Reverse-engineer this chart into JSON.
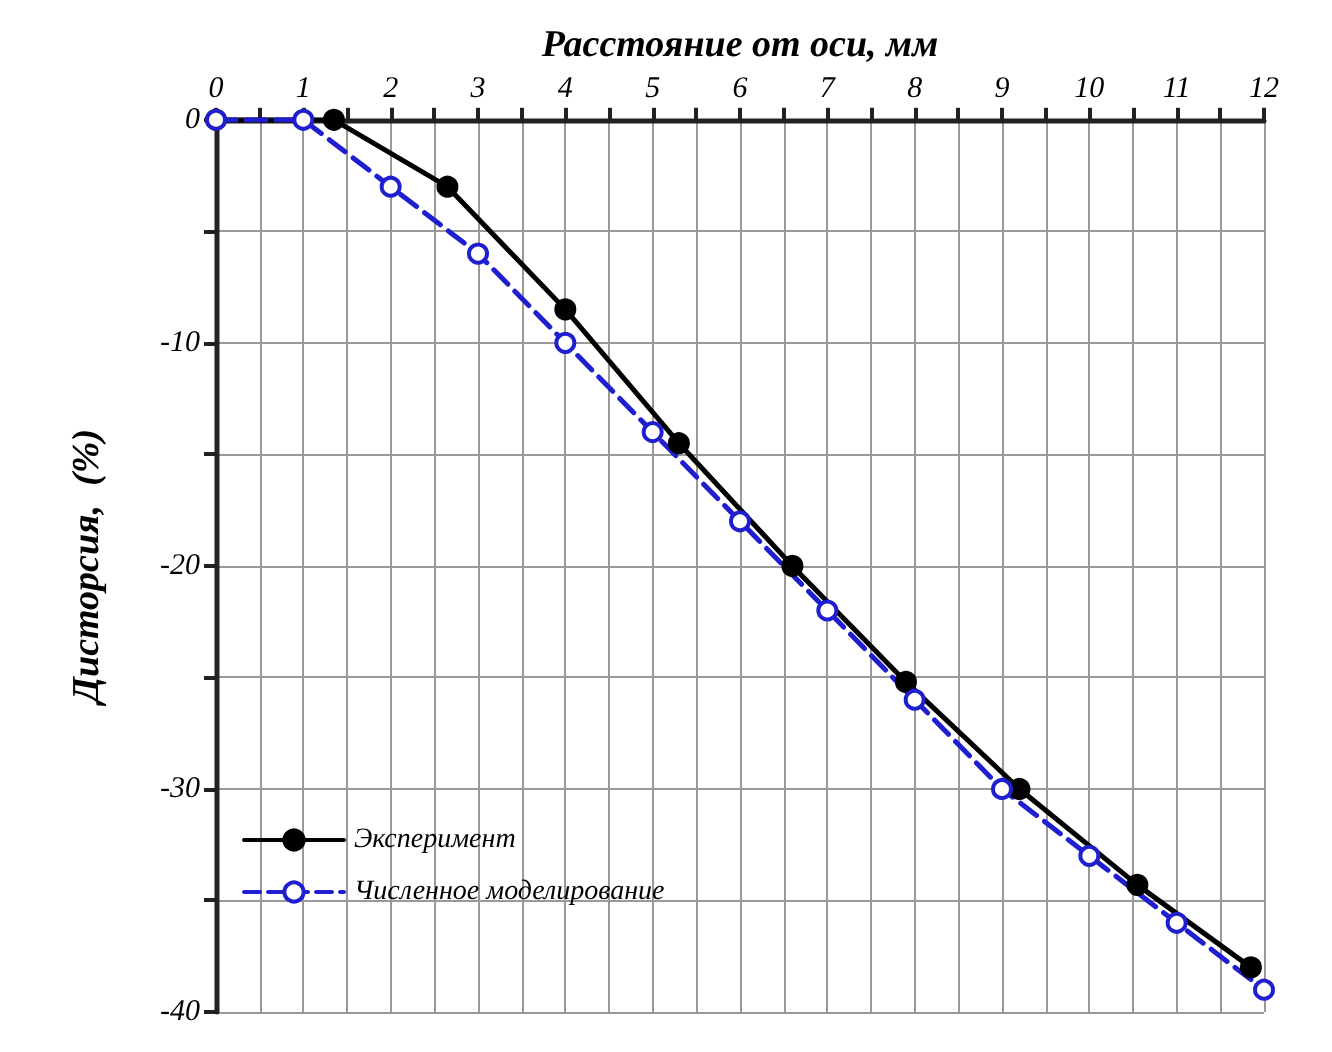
{
  "chart_data": {
    "type": "line",
    "xlabel": "Расстояние от оси, мм",
    "ylabel": "Дисторсия,  (%)",
    "xlim": [
      0,
      12
    ],
    "xticks": [
      0,
      {
        "value": 0.5,
        "label": null
      },
      1,
      {
        "value": 1.5,
        "label": null
      },
      2,
      {
        "value": 2.5,
        "label": null
      },
      3,
      {
        "value": 3.5,
        "label": null
      },
      4,
      {
        "value": 4.5,
        "label": null
      },
      5,
      {
        "value": 5.5,
        "label": null
      },
      6,
      {
        "value": 6.5,
        "label": null
      },
      7,
      {
        "value": 7.5,
        "label": null
      },
      8,
      {
        "value": 8.5,
        "label": null
      },
      9,
      {
        "value": 9.5,
        "label": null
      },
      10,
      {
        "value": 10.5,
        "label": null
      },
      11,
      {
        "value": 11.5,
        "label": null
      },
      12
    ],
    "ylim": [
      -40,
      0
    ],
    "yticks": [
      -40,
      {
        "value": -35,
        "label": null
      },
      -30,
      {
        "value": -25,
        "label": null
      },
      -20,
      {
        "value": -15,
        "label": null
      },
      -10,
      {
        "value": -5,
        "label": null
      },
      0
    ],
    "grid": true,
    "legend": "bottom left",
    "series": [
      {
        "name": "Эксперимент",
        "color": "#000000",
        "marker": "circle",
        "line_style": "solid",
        "x": [
          0,
          1.35,
          2.65,
          4,
          5.3,
          6.6,
          7.9,
          9.2,
          10.55,
          11.85
        ],
        "values": [
          0,
          0,
          -3,
          -8.5,
          -14.5,
          -20,
          -25.2,
          -30,
          -34.3,
          -38
        ]
      },
      {
        "name": "Численное моделирование",
        "color": "#1f1fd0",
        "marker": "open-circle",
        "line_style": "dashed",
        "x": [
          0,
          1,
          2,
          3,
          4,
          5,
          6,
          7,
          8,
          9,
          10,
          11,
          12
        ],
        "values": [
          0,
          0,
          -3,
          -6,
          -10,
          -14,
          -18,
          -22,
          -26,
          -30,
          -33,
          -36,
          -39
        ]
      }
    ]
  }
}
